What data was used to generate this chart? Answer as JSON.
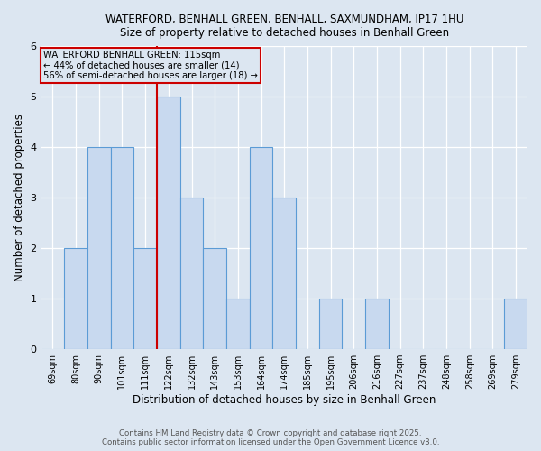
{
  "title_line1": "WATERFORD, BENHALL GREEN, BENHALL, SAXMUNDHAM, IP17 1HU",
  "title_line2": "Size of property relative to detached houses in Benhall Green",
  "xlabel": "Distribution of detached houses by size in Benhall Green",
  "ylabel": "Number of detached properties",
  "categories": [
    "69sqm",
    "80sqm",
    "90sqm",
    "101sqm",
    "111sqm",
    "122sqm",
    "132sqm",
    "143sqm",
    "153sqm",
    "164sqm",
    "174sqm",
    "185sqm",
    "195sqm",
    "206sqm",
    "216sqm",
    "227sqm",
    "237sqm",
    "248sqm",
    "258sqm",
    "269sqm",
    "279sqm"
  ],
  "values": [
    0,
    2,
    4,
    4,
    2,
    5,
    3,
    2,
    1,
    4,
    3,
    0,
    1,
    0,
    1,
    0,
    0,
    0,
    0,
    0,
    1
  ],
  "bar_color": "#c8d9ef",
  "bar_edge_color": "#5b9bd5",
  "marker_label_line1": "WATERFORD BENHALL GREEN: 115sqm",
  "marker_label_line2": "← 44% of detached houses are smaller (14)",
  "marker_label_line3": "56% of semi-detached houses are larger (18) →",
  "marker_color": "#cc0000",
  "ylim": [
    0,
    6
  ],
  "yticks": [
    0,
    1,
    2,
    3,
    4,
    5,
    6
  ],
  "background_color": "#dce6f1",
  "footnote_line1": "Contains HM Land Registry data © Crown copyright and database right 2025.",
  "footnote_line2": "Contains public sector information licensed under the Open Government Licence v3.0."
}
